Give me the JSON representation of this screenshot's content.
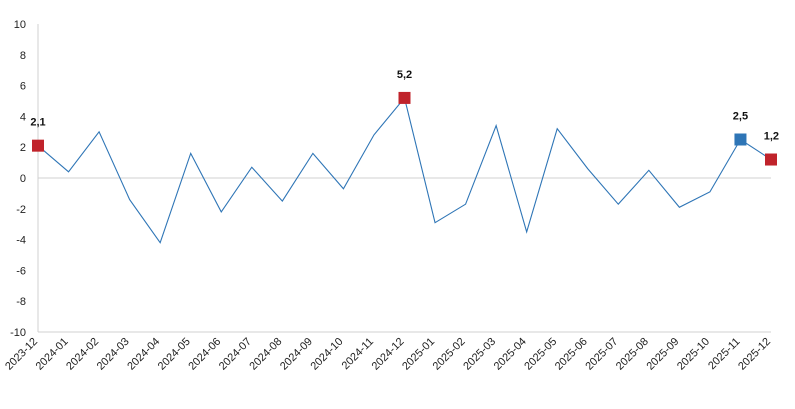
{
  "chart_data": {
    "type": "line",
    "title": "",
    "xlabel": "",
    "ylabel": "",
    "ylim": [
      -10,
      10
    ],
    "yticks": [
      10,
      8,
      6,
      4,
      2,
      0,
      -2,
      -4,
      -6,
      -8,
      -10
    ],
    "grid": false,
    "legend": "none",
    "line_color": "#2e75b6",
    "highlight_red": "#c0232b",
    "highlight_blue": "#2e75b6",
    "categories": [
      "2023-12",
      "2024-01",
      "2024-02",
      "2024-03",
      "2024-04",
      "2024-05",
      "2024-06",
      "2024-07",
      "2024-08",
      "2024-09",
      "2024-10",
      "2024-11",
      "2024-12",
      "2025-01",
      "2025-02",
      "2025-03",
      "2025-04",
      "2025-05",
      "2025-06",
      "2025-07",
      "2025-08",
      "2025-09",
      "2025-10",
      "2025-11",
      "2025-12"
    ],
    "series": [
      {
        "values": [
          2.1,
          0.4,
          3.0,
          -1.4,
          -4.2,
          1.6,
          -2.2,
          0.7,
          -1.5,
          1.6,
          -0.7,
          2.8,
          5.2,
          -2.9,
          -1.7,
          3.4,
          -3.5,
          3.2,
          0.6,
          -1.7,
          0.5,
          -1.9,
          -0.9,
          2.5,
          1.2
        ]
      }
    ],
    "annotations": [
      {
        "category": "2023-12",
        "label": "2,1",
        "marker_color": "#c0232b"
      },
      {
        "category": "2024-12",
        "label": "5,2",
        "marker_color": "#c0232b"
      },
      {
        "category": "2025-11",
        "label": "2,5",
        "marker_color": "#2e75b6"
      },
      {
        "category": "2025-12",
        "label": "1,2",
        "marker_color": "#c0232b"
      }
    ]
  }
}
